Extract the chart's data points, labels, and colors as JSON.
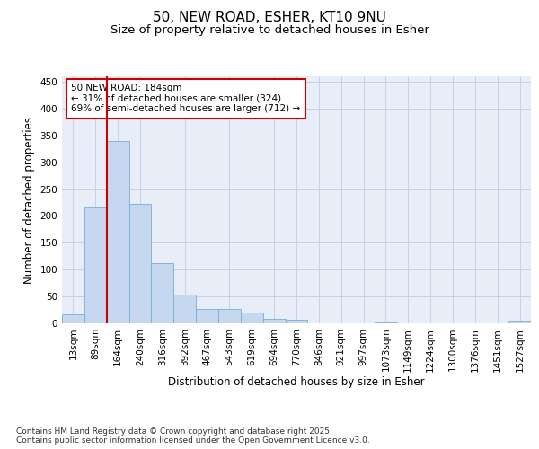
{
  "title_line1": "50, NEW ROAD, ESHER, KT10 9NU",
  "title_line2": "Size of property relative to detached houses in Esher",
  "xlabel": "Distribution of detached houses by size in Esher",
  "ylabel": "Number of detached properties",
  "categories": [
    "13sqm",
    "89sqm",
    "164sqm",
    "240sqm",
    "316sqm",
    "392sqm",
    "467sqm",
    "543sqm",
    "619sqm",
    "694sqm",
    "770sqm",
    "846sqm",
    "921sqm",
    "997sqm",
    "1073sqm",
    "1149sqm",
    "1224sqm",
    "1300sqm",
    "1376sqm",
    "1451sqm",
    "1527sqm"
  ],
  "values": [
    16,
    216,
    340,
    222,
    112,
    54,
    26,
    26,
    20,
    8,
    6,
    0,
    0,
    0,
    2,
    0,
    0,
    0,
    0,
    0,
    3
  ],
  "bar_color": "#c5d8f0",
  "bar_edge_color": "#7aadd4",
  "vline_color": "#cc0000",
  "annotation_text": "50 NEW ROAD: 184sqm\n← 31% of detached houses are smaller (324)\n69% of semi-detached houses are larger (712) →",
  "annotation_box_color": "#ffffff",
  "annotation_box_edge": "#cc0000",
  "ylim": [
    0,
    460
  ],
  "yticks": [
    0,
    50,
    100,
    150,
    200,
    250,
    300,
    350,
    400,
    450
  ],
  "grid_color": "#c8d0e8",
  "background_color": "#e8eef8",
  "footer_text": "Contains HM Land Registry data © Crown copyright and database right 2025.\nContains public sector information licensed under the Open Government Licence v3.0.",
  "title_fontsize": 11,
  "subtitle_fontsize": 9.5,
  "axis_label_fontsize": 8.5,
  "tick_fontsize": 7.5,
  "footer_fontsize": 6.5
}
